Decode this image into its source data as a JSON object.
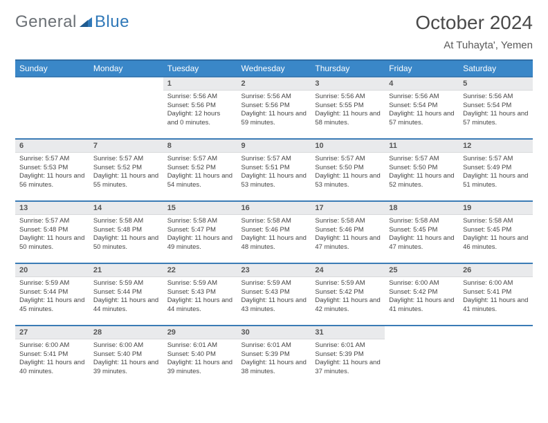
{
  "brand": {
    "part1": "General",
    "part2": "Blue",
    "logo_color": "#2f78b8",
    "gray": "#6b7075"
  },
  "title": "October 2024",
  "location": "At Tuhayta', Yemen",
  "colors": {
    "header_bg": "#3a87c8",
    "header_border": "#2f6ea6",
    "row_border": "#3a7bb5",
    "daynum_bg": "#e9eaec",
    "text": "#333333",
    "background": "#ffffff"
  },
  "typography": {
    "title_fontsize": 28,
    "subtitle_fontsize": 15,
    "dayhead_fontsize": 12,
    "daynum_fontsize": 11,
    "body_fontsize": 9.5
  },
  "calendar": {
    "type": "table",
    "columns": [
      "Sunday",
      "Monday",
      "Tuesday",
      "Wednesday",
      "Thursday",
      "Friday",
      "Saturday"
    ],
    "leading_blanks": 2,
    "days": [
      {
        "n": 1,
        "sunrise": "5:56 AM",
        "sunset": "5:56 PM",
        "daylight": "12 hours and 0 minutes."
      },
      {
        "n": 2,
        "sunrise": "5:56 AM",
        "sunset": "5:56 PM",
        "daylight": "11 hours and 59 minutes."
      },
      {
        "n": 3,
        "sunrise": "5:56 AM",
        "sunset": "5:55 PM",
        "daylight": "11 hours and 58 minutes."
      },
      {
        "n": 4,
        "sunrise": "5:56 AM",
        "sunset": "5:54 PM",
        "daylight": "11 hours and 57 minutes."
      },
      {
        "n": 5,
        "sunrise": "5:56 AM",
        "sunset": "5:54 PM",
        "daylight": "11 hours and 57 minutes."
      },
      {
        "n": 6,
        "sunrise": "5:57 AM",
        "sunset": "5:53 PM",
        "daylight": "11 hours and 56 minutes."
      },
      {
        "n": 7,
        "sunrise": "5:57 AM",
        "sunset": "5:52 PM",
        "daylight": "11 hours and 55 minutes."
      },
      {
        "n": 8,
        "sunrise": "5:57 AM",
        "sunset": "5:52 PM",
        "daylight": "11 hours and 54 minutes."
      },
      {
        "n": 9,
        "sunrise": "5:57 AM",
        "sunset": "5:51 PM",
        "daylight": "11 hours and 53 minutes."
      },
      {
        "n": 10,
        "sunrise": "5:57 AM",
        "sunset": "5:50 PM",
        "daylight": "11 hours and 53 minutes."
      },
      {
        "n": 11,
        "sunrise": "5:57 AM",
        "sunset": "5:50 PM",
        "daylight": "11 hours and 52 minutes."
      },
      {
        "n": 12,
        "sunrise": "5:57 AM",
        "sunset": "5:49 PM",
        "daylight": "11 hours and 51 minutes."
      },
      {
        "n": 13,
        "sunrise": "5:57 AM",
        "sunset": "5:48 PM",
        "daylight": "11 hours and 50 minutes."
      },
      {
        "n": 14,
        "sunrise": "5:58 AM",
        "sunset": "5:48 PM",
        "daylight": "11 hours and 50 minutes."
      },
      {
        "n": 15,
        "sunrise": "5:58 AM",
        "sunset": "5:47 PM",
        "daylight": "11 hours and 49 minutes."
      },
      {
        "n": 16,
        "sunrise": "5:58 AM",
        "sunset": "5:46 PM",
        "daylight": "11 hours and 48 minutes."
      },
      {
        "n": 17,
        "sunrise": "5:58 AM",
        "sunset": "5:46 PM",
        "daylight": "11 hours and 47 minutes."
      },
      {
        "n": 18,
        "sunrise": "5:58 AM",
        "sunset": "5:45 PM",
        "daylight": "11 hours and 47 minutes."
      },
      {
        "n": 19,
        "sunrise": "5:58 AM",
        "sunset": "5:45 PM",
        "daylight": "11 hours and 46 minutes."
      },
      {
        "n": 20,
        "sunrise": "5:59 AM",
        "sunset": "5:44 PM",
        "daylight": "11 hours and 45 minutes."
      },
      {
        "n": 21,
        "sunrise": "5:59 AM",
        "sunset": "5:44 PM",
        "daylight": "11 hours and 44 minutes."
      },
      {
        "n": 22,
        "sunrise": "5:59 AM",
        "sunset": "5:43 PM",
        "daylight": "11 hours and 44 minutes."
      },
      {
        "n": 23,
        "sunrise": "5:59 AM",
        "sunset": "5:43 PM",
        "daylight": "11 hours and 43 minutes."
      },
      {
        "n": 24,
        "sunrise": "5:59 AM",
        "sunset": "5:42 PM",
        "daylight": "11 hours and 42 minutes."
      },
      {
        "n": 25,
        "sunrise": "6:00 AM",
        "sunset": "5:42 PM",
        "daylight": "11 hours and 41 minutes."
      },
      {
        "n": 26,
        "sunrise": "6:00 AM",
        "sunset": "5:41 PM",
        "daylight": "11 hours and 41 minutes."
      },
      {
        "n": 27,
        "sunrise": "6:00 AM",
        "sunset": "5:41 PM",
        "daylight": "11 hours and 40 minutes."
      },
      {
        "n": 28,
        "sunrise": "6:00 AM",
        "sunset": "5:40 PM",
        "daylight": "11 hours and 39 minutes."
      },
      {
        "n": 29,
        "sunrise": "6:01 AM",
        "sunset": "5:40 PM",
        "daylight": "11 hours and 39 minutes."
      },
      {
        "n": 30,
        "sunrise": "6:01 AM",
        "sunset": "5:39 PM",
        "daylight": "11 hours and 38 minutes."
      },
      {
        "n": 31,
        "sunrise": "6:01 AM",
        "sunset": "5:39 PM",
        "daylight": "11 hours and 37 minutes."
      }
    ],
    "labels": {
      "sunrise": "Sunrise:",
      "sunset": "Sunset:",
      "daylight": "Daylight:"
    }
  }
}
